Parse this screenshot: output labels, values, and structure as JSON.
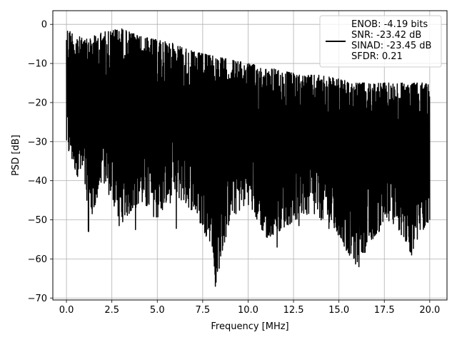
{
  "chart_data": {
    "type": "line",
    "title": "",
    "xlabel": "Frequency [MHz]",
    "ylabel": "PSD [dB]",
    "xlim": [
      -0.75,
      20.95
    ],
    "ylim": [
      -70.5,
      3.5
    ],
    "xticks": [
      0.0,
      2.5,
      5.0,
      7.5,
      10.0,
      12.5,
      15.0,
      17.5,
      20.0
    ],
    "xtick_labels": [
      "0.0",
      "2.5",
      "5.0",
      "7.5",
      "10.0",
      "12.5",
      "15.0",
      "17.5",
      "20.0"
    ],
    "yticks": [
      0,
      -10,
      -20,
      -30,
      -40,
      -50,
      -60,
      -70
    ],
    "ytick_labels": [
      "0",
      "−10",
      "−20",
      "−30",
      "−40",
      "−50",
      "−60",
      "−70"
    ],
    "grid": true,
    "legend_position": "top-right",
    "series": [
      {
        "name": "ENOB: -4.19 bits\nSNR: -23.42 dB\nSINAD: -23.45 dB\nSFDR: 0.21",
        "color": "#000000",
        "x_range": [
          0.0,
          20.0
        ],
        "num_points": 2048,
        "upper_envelope": [
          [
            0.0,
            -1
          ],
          [
            1.0,
            -4
          ],
          [
            2.0,
            -2
          ],
          [
            3.0,
            -1
          ],
          [
            4.0,
            -3
          ],
          [
            5.0,
            -4
          ],
          [
            6.0,
            -5
          ],
          [
            7.0,
            -7
          ],
          [
            8.0,
            -8
          ],
          [
            9.0,
            -9
          ],
          [
            10.0,
            -10
          ],
          [
            11.0,
            -11
          ],
          [
            12.0,
            -12
          ],
          [
            13.0,
            -13
          ],
          [
            14.0,
            -13
          ],
          [
            15.0,
            -14
          ],
          [
            16.0,
            -15
          ],
          [
            17.0,
            -15
          ],
          [
            18.0,
            -15
          ],
          [
            19.0,
            -15
          ],
          [
            20.0,
            -15
          ]
        ],
        "lower_envelope": [
          [
            0.0,
            -33
          ],
          [
            0.5,
            -38
          ],
          [
            1.0,
            -42
          ],
          [
            1.2,
            -53
          ],
          [
            2.0,
            -40
          ],
          [
            3.0,
            -51
          ],
          [
            4.0,
            -46
          ],
          [
            5.0,
            -50
          ],
          [
            6.0,
            -44
          ],
          [
            7.0,
            -48
          ],
          [
            8.0,
            -57
          ],
          [
            8.2,
            -67
          ],
          [
            9.0,
            -50
          ],
          [
            10.0,
            -46
          ],
          [
            11.0,
            -55
          ],
          [
            12.0,
            -52
          ],
          [
            13.0,
            -49
          ],
          [
            14.0,
            -50
          ],
          [
            15.0,
            -55
          ],
          [
            16.0,
            -62
          ],
          [
            17.0,
            -54
          ],
          [
            18.0,
            -50
          ],
          [
            19.0,
            -59
          ],
          [
            20.0,
            -50
          ]
        ],
        "notable_dips": [
          [
            1.22,
            -53.0
          ],
          [
            2.9,
            -51.5
          ],
          [
            3.8,
            -52.5
          ],
          [
            6.05,
            -52.2
          ],
          [
            7.85,
            -49.0
          ],
          [
            8.2,
            -67.0
          ],
          [
            11.05,
            -54.5
          ],
          [
            11.6,
            -57.0
          ],
          [
            12.8,
            -51.5
          ],
          [
            15.4,
            -54.5
          ],
          [
            16.1,
            -62.0
          ],
          [
            16.8,
            -55.0
          ],
          [
            18.0,
            -51.0
          ],
          [
            19.0,
            -59.0
          ],
          [
            20.0,
            -50.0
          ]
        ]
      }
    ]
  }
}
